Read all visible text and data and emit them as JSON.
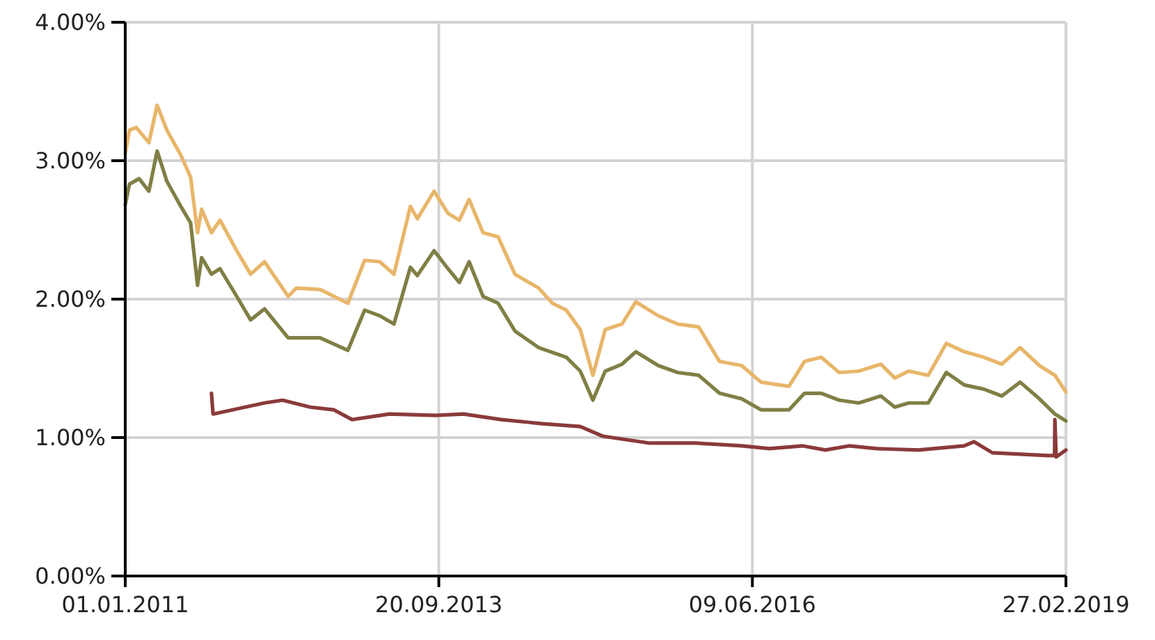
{
  "chart_data": {
    "type": "line",
    "xlim": [
      "2011-01-01",
      "2019-02-27"
    ],
    "xticks": [
      {
        "value": "2011-01-01",
        "label": "01.01.2011"
      },
      {
        "value": "2013-09-20",
        "label": "20.09.2013"
      },
      {
        "value": "2016-06-09",
        "label": "09.06.2016"
      },
      {
        "value": "2019-02-27",
        "label": "27.02.2019"
      }
    ],
    "ylim": [
      0,
      4
    ],
    "yticks": [
      {
        "value": 0,
        "label": "0.00%"
      },
      {
        "value": 1,
        "label": "1.00%"
      },
      {
        "value": 2,
        "label": "2.00%"
      },
      {
        "value": 3,
        "label": "3.00%"
      },
      {
        "value": 4,
        "label": "4.00%"
      }
    ],
    "grid": true,
    "line_style": "solid",
    "marker": "none",
    "series": [
      {
        "color": "#e8b66a",
        "x": [
          "2011-01-01",
          "2011-01-14",
          "2011-02-05",
          "2011-03-17",
          "2011-04-12",
          "2011-05-13",
          "2011-06-26",
          "2011-07-27",
          "2011-08-18",
          "2011-08-31",
          "2011-10-01",
          "2011-10-28",
          "2011-12-20",
          "2012-02-02",
          "2012-03-17",
          "2012-05-31",
          "2012-06-26",
          "2012-09-09",
          "2012-12-06",
          "2013-01-28",
          "2013-03-17",
          "2013-05-01",
          "2013-06-22",
          "2013-07-14",
          "2013-09-05",
          "2013-10-19",
          "2013-11-24",
          "2013-12-25",
          "2014-02-07",
          "2014-03-27",
          "2014-05-19",
          "2014-08-02",
          "2014-09-15",
          "2014-10-29",
          "2014-12-12",
          "2015-01-21",
          "2015-03-01",
          "2015-04-23",
          "2015-06-06",
          "2015-08-16",
          "2015-10-17",
          "2015-12-22",
          "2016-02-26",
          "2016-05-06",
          "2016-07-07",
          "2016-10-03",
          "2016-11-21",
          "2017-01-13",
          "2017-03-11",
          "2017-05-12",
          "2017-07-21",
          "2017-09-03",
          "2017-10-17",
          "2017-12-18",
          "2018-02-13",
          "2018-04-11",
          "2018-06-12",
          "2018-08-08",
          "2018-10-05",
          "2018-12-05",
          "2019-01-23",
          "2019-02-27"
        ],
        "values": [
          3.05,
          3.22,
          3.24,
          3.13,
          3.4,
          3.22,
          3.04,
          2.88,
          2.48,
          2.65,
          2.48,
          2.57,
          2.35,
          2.18,
          2.27,
          2.02,
          2.08,
          2.07,
          1.97,
          2.28,
          2.27,
          2.18,
          2.67,
          2.58,
          2.78,
          2.62,
          2.57,
          2.72,
          2.48,
          2.45,
          2.18,
          2.08,
          1.97,
          1.92,
          1.78,
          1.45,
          1.78,
          1.82,
          1.98,
          1.88,
          1.82,
          1.8,
          1.55,
          1.52,
          1.4,
          1.37,
          1.55,
          1.58,
          1.47,
          1.48,
          1.53,
          1.43,
          1.48,
          1.45,
          1.68,
          1.62,
          1.58,
          1.53,
          1.65,
          1.52,
          1.45,
          1.33
        ]
      },
      {
        "color": "#807f45",
        "x": [
          "2011-01-01",
          "2011-01-14",
          "2011-02-14",
          "2011-03-17",
          "2011-04-12",
          "2011-05-13",
          "2011-06-26",
          "2011-07-27",
          "2011-08-18",
          "2011-08-31",
          "2011-10-01",
          "2011-10-28",
          "2011-12-20",
          "2012-02-02",
          "2012-03-17",
          "2012-05-31",
          "2012-09-09",
          "2012-12-06",
          "2013-01-28",
          "2013-03-17",
          "2013-05-01",
          "2013-06-22",
          "2013-07-14",
          "2013-09-05",
          "2013-10-19",
          "2013-11-24",
          "2013-12-25",
          "2014-02-07",
          "2014-03-27",
          "2014-05-19",
          "2014-08-02",
          "2014-10-29",
          "2014-12-12",
          "2015-01-21",
          "2015-03-01",
          "2015-04-23",
          "2015-06-06",
          "2015-08-16",
          "2015-10-17",
          "2015-12-22",
          "2016-02-26",
          "2016-05-06",
          "2016-07-07",
          "2016-10-03",
          "2016-11-21",
          "2017-01-13",
          "2017-03-11",
          "2017-05-12",
          "2017-07-21",
          "2017-09-03",
          "2017-10-17",
          "2017-12-18",
          "2018-02-13",
          "2018-04-11",
          "2018-06-12",
          "2018-08-08",
          "2018-10-05",
          "2018-12-05",
          "2019-01-23",
          "2019-02-27"
        ],
        "values": [
          2.68,
          2.83,
          2.87,
          2.78,
          3.07,
          2.85,
          2.67,
          2.55,
          2.1,
          2.3,
          2.18,
          2.22,
          2.02,
          1.85,
          1.93,
          1.72,
          1.72,
          1.63,
          1.92,
          1.88,
          1.82,
          2.23,
          2.17,
          2.35,
          2.22,
          2.12,
          2.27,
          2.02,
          1.97,
          1.77,
          1.65,
          1.58,
          1.48,
          1.27,
          1.48,
          1.53,
          1.62,
          1.52,
          1.47,
          1.45,
          1.32,
          1.28,
          1.2,
          1.2,
          1.32,
          1.32,
          1.27,
          1.25,
          1.3,
          1.22,
          1.25,
          1.25,
          1.47,
          1.38,
          1.35,
          1.3,
          1.4,
          1.28,
          1.17,
          1.12
        ]
      },
      {
        "color": "#8b3a3a",
        "x": [
          "2011-10-01",
          "2011-10-06",
          "2011-12-06",
          "2012-03-17",
          "2012-05-13",
          "2012-08-09",
          "2012-10-23",
          "2012-12-19",
          "2013-04-17",
          "2013-09-10",
          "2013-12-07",
          "2014-04-05",
          "2014-08-15",
          "2014-12-12",
          "2015-02-21",
          "2015-07-20",
          "2015-12-13",
          "2016-05-06",
          "2016-08-02",
          "2016-11-16",
          "2017-01-26",
          "2017-04-11",
          "2017-07-08",
          "2017-11-17",
          "2018-04-11",
          "2018-05-12",
          "2018-07-09",
          "2019-01-01",
          "2019-01-22",
          "2019-01-23",
          "2019-01-27",
          "2019-02-27"
        ],
        "values": [
          1.32,
          1.17,
          1.2,
          1.25,
          1.27,
          1.22,
          1.2,
          1.13,
          1.17,
          1.16,
          1.17,
          1.13,
          1.1,
          1.08,
          1.01,
          0.96,
          0.96,
          0.94,
          0.92,
          0.94,
          0.91,
          0.94,
          0.92,
          0.91,
          0.94,
          0.97,
          0.89,
          0.87,
          0.87,
          1.13,
          0.86,
          0.91
        ]
      }
    ]
  }
}
